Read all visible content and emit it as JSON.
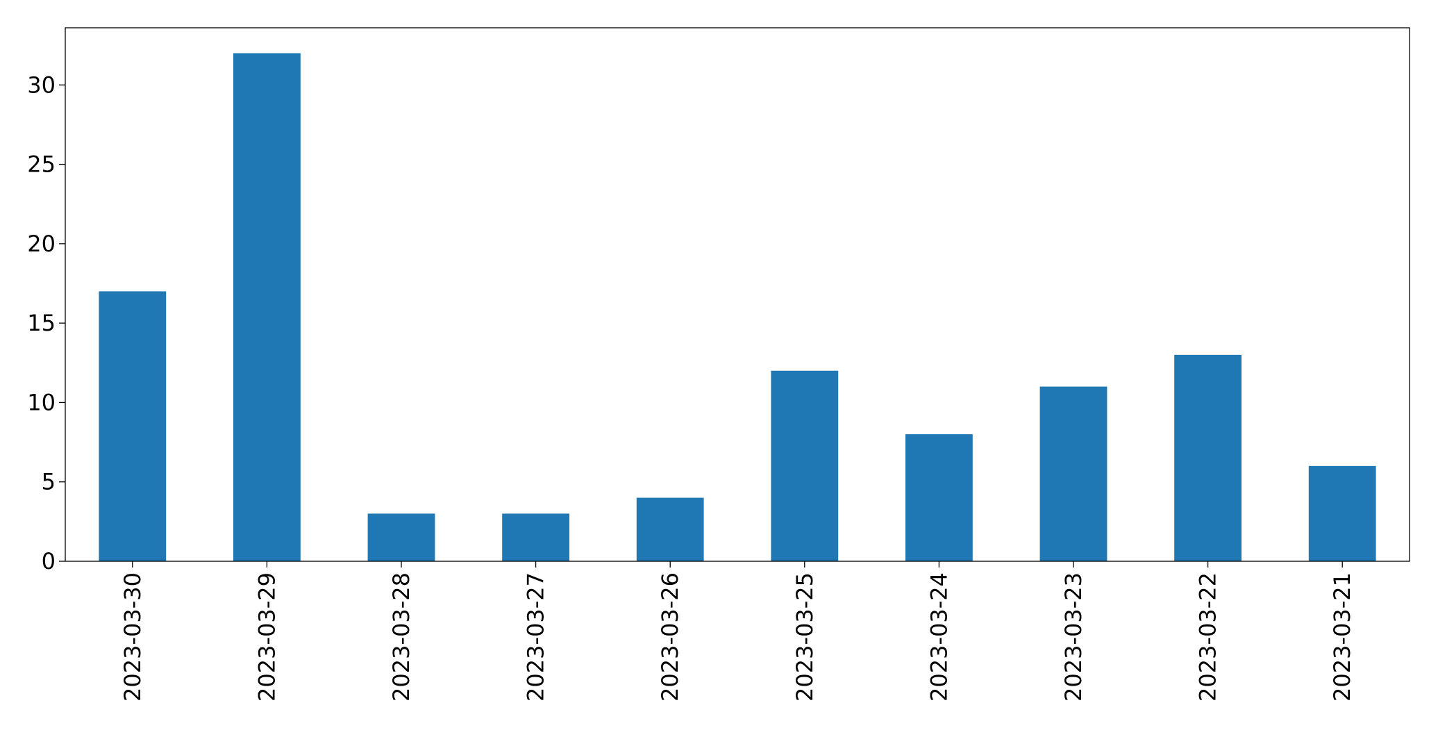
{
  "chart_data": {
    "type": "bar",
    "categories": [
      "2023-03-30",
      "2023-03-29",
      "2023-03-28",
      "2023-03-27",
      "2023-03-26",
      "2023-03-25",
      "2023-03-24",
      "2023-03-23",
      "2023-03-22",
      "2023-03-21"
    ],
    "values": [
      17,
      32,
      3,
      3,
      4,
      12,
      8,
      11,
      13,
      6
    ],
    "color": "#1f77b4",
    "ylim": [
      0,
      33.6
    ],
    "yticks": [
      0,
      5,
      10,
      15,
      20,
      25,
      30
    ],
    "grid": false
  }
}
